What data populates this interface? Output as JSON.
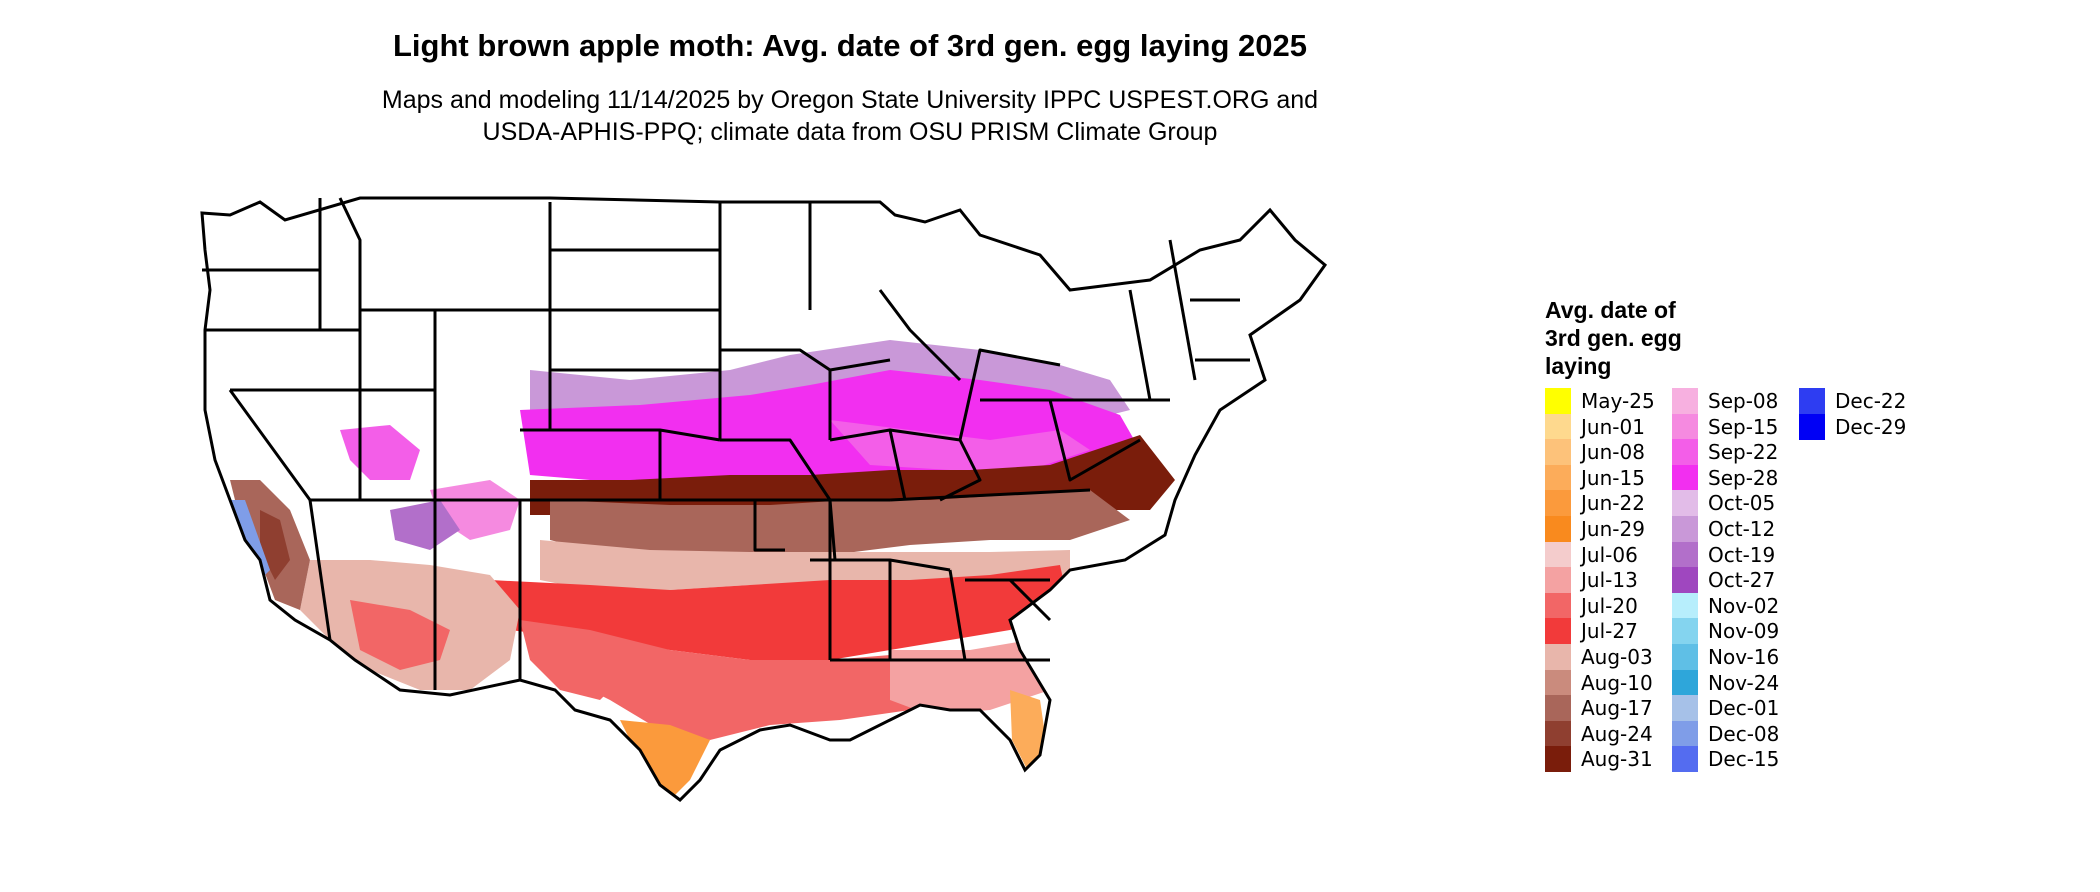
{
  "title": "Light brown apple moth: Avg. date of 3rd gen. egg laying 2025",
  "subtitle_line1": "Maps and modeling 11/14/2025 by Oregon State University IPPC USPEST.ORG and",
  "subtitle_line2": "USDA-APHIS-PPQ; climate data from OSU PRISM Climate Group",
  "legend": {
    "title_lines": [
      "Avg. date of",
      "3rd gen. egg",
      "laying"
    ],
    "entries": [
      {
        "label": "May-25",
        "color": "#ffff00"
      },
      {
        "label": "Jun-01",
        "color": "#fed98e"
      },
      {
        "label": "Jun-08",
        "color": "#fdc27a"
      },
      {
        "label": "Jun-15",
        "color": "#fcac5a"
      },
      {
        "label": "Jun-22",
        "color": "#fb9a3c"
      },
      {
        "label": "Jun-29",
        "color": "#f98a1e"
      },
      {
        "label": "Jul-06",
        "color": "#f4cccc"
      },
      {
        "label": "Jul-13",
        "color": "#f4a2a2"
      },
      {
        "label": "Jul-20",
        "color": "#f26666"
      },
      {
        "label": "Jul-27",
        "color": "#f23a3a"
      },
      {
        "label": "Aug-03",
        "color": "#e8b6ab"
      },
      {
        "label": "Aug-10",
        "color": "#ca8b7d"
      },
      {
        "label": "Aug-17",
        "color": "#a9665a"
      },
      {
        "label": "Aug-24",
        "color": "#8f3f30"
      },
      {
        "label": "Aug-31",
        "color": "#7a1d0b"
      },
      {
        "label": "Sep-08",
        "color": "#f7b0e0"
      },
      {
        "label": "Sep-15",
        "color": "#f58ae0"
      },
      {
        "label": "Sep-22",
        "color": "#f35ee8"
      },
      {
        "label": "Sep-28",
        "color": "#f22ff0"
      },
      {
        "label": "Oct-05",
        "color": "#e2bce8"
      },
      {
        "label": "Oct-12",
        "color": "#c998d8"
      },
      {
        "label": "Oct-19",
        "color": "#b26fca"
      },
      {
        "label": "Oct-27",
        "color": "#9f47bf"
      },
      {
        "label": "Nov-02",
        "color": "#b7eefc"
      },
      {
        "label": "Nov-09",
        "color": "#84d4ef"
      },
      {
        "label": "Nov-16",
        "color": "#5fbfe6"
      },
      {
        "label": "Nov-24",
        "color": "#2ea6da"
      },
      {
        "label": "Dec-01",
        "color": "#a6c1e8"
      },
      {
        "label": "Dec-08",
        "color": "#7f9de8"
      },
      {
        "label": "Dec-15",
        "color": "#546cf0"
      },
      {
        "label": "Dec-22",
        "color": "#2e3df2"
      },
      {
        "label": "Dec-29",
        "color": "#0000f5"
      }
    ]
  }
}
